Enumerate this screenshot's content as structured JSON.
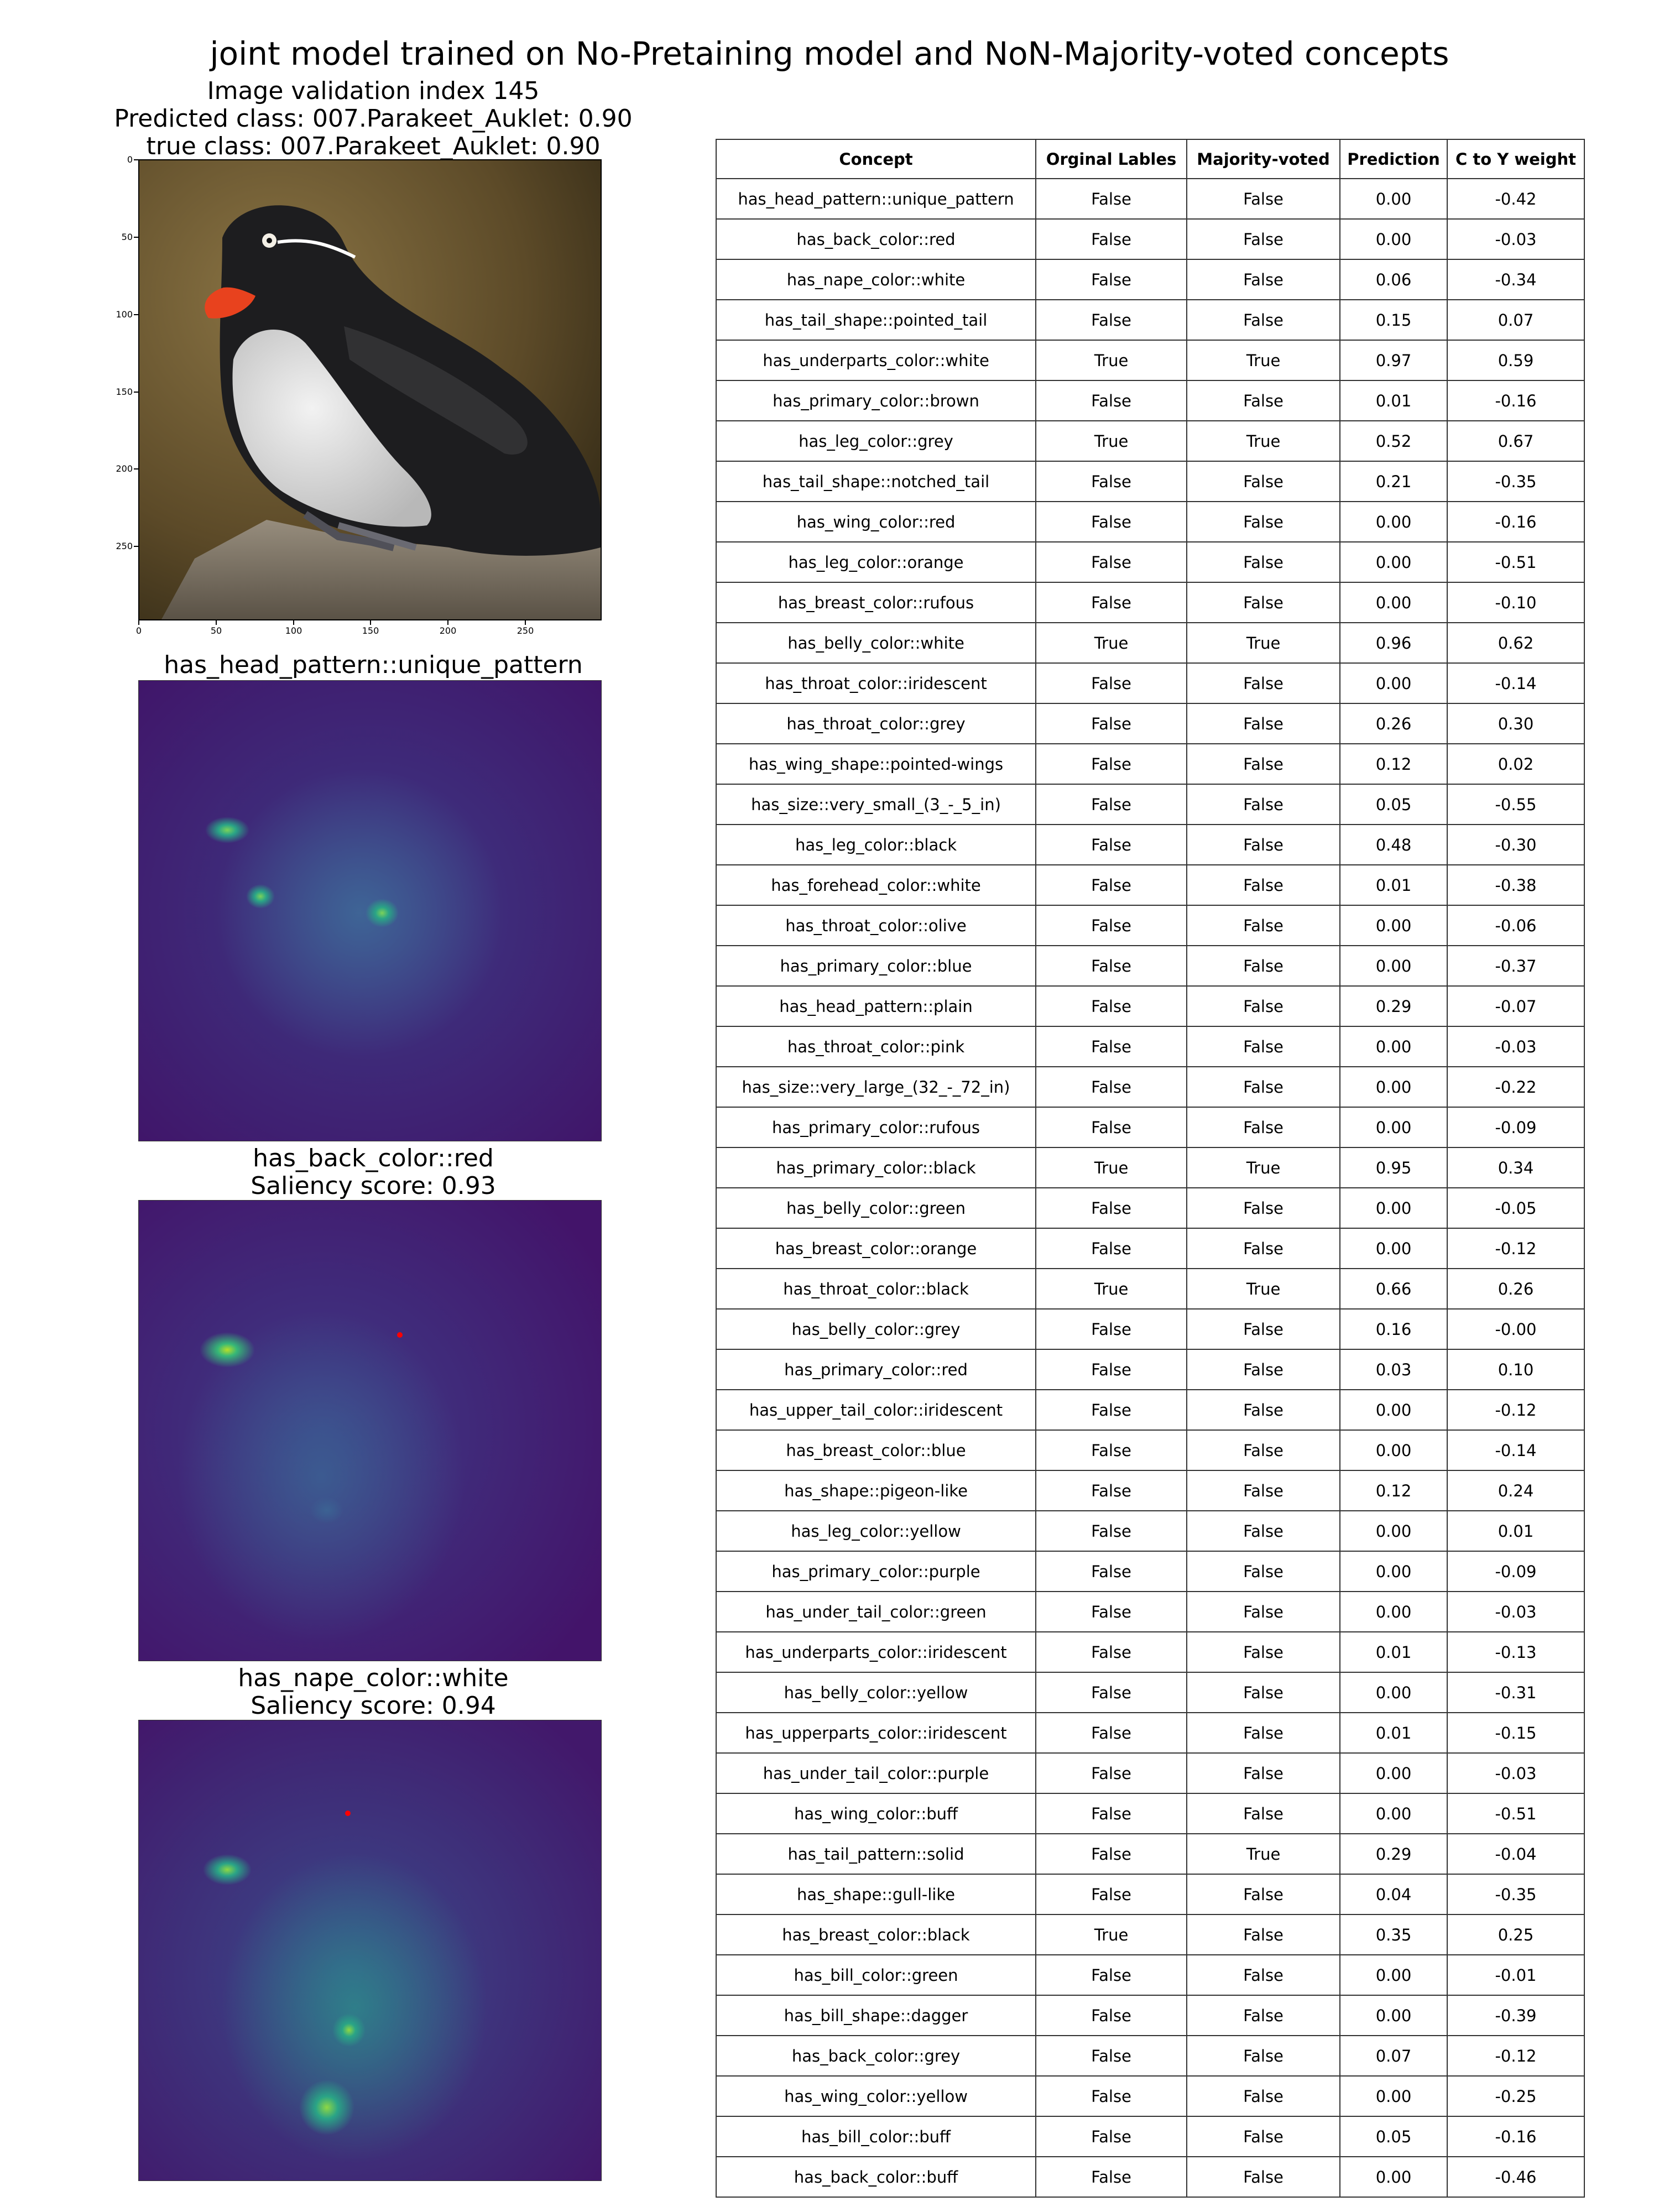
{
  "title": "joint model trained on No-Pretaining model and NoN-Majority-voted concepts",
  "image_panel": {
    "line1": "Image validation index 145",
    "line2": "Predicted class: 007.Parakeet_Auklet: 0.90",
    "line3": "true class: 007.Parakeet_Auklet: 0.90",
    "y_ticks": [
      "0",
      "50",
      "100",
      "150",
      "200",
      "250"
    ],
    "x_ticks": [
      "0",
      "50",
      "100",
      "150",
      "200",
      "250"
    ]
  },
  "saliency_panels": [
    {
      "title": "has_head_pattern::unique_pattern",
      "score_text": ""
    },
    {
      "title": "has_back_color::red",
      "score_text": "Saliency score: 0.93"
    },
    {
      "title": "has_nape_color::white",
      "score_text": "Saliency score: 0.94"
    }
  ],
  "colors": {
    "viridis_dark": "#3b1c63",
    "viridis_mid": "#3b5a8c",
    "viridis_green": "#5ec962",
    "marker_red": "#ff0000"
  },
  "chart_data": {
    "type": "table",
    "columns": [
      "Concept",
      "Orginal Lables",
      "Majority-voted",
      "Prediction",
      "C to Y weight"
    ],
    "rows": [
      [
        "has_head_pattern::unique_pattern",
        "False",
        "False",
        "0.00",
        "-0.42"
      ],
      [
        "has_back_color::red",
        "False",
        "False",
        "0.00",
        "-0.03"
      ],
      [
        "has_nape_color::white",
        "False",
        "False",
        "0.06",
        "-0.34"
      ],
      [
        "has_tail_shape::pointed_tail",
        "False",
        "False",
        "0.15",
        "0.07"
      ],
      [
        "has_underparts_color::white",
        "True",
        "True",
        "0.97",
        "0.59"
      ],
      [
        "has_primary_color::brown",
        "False",
        "False",
        "0.01",
        "-0.16"
      ],
      [
        "has_leg_color::grey",
        "True",
        "True",
        "0.52",
        "0.67"
      ],
      [
        "has_tail_shape::notched_tail",
        "False",
        "False",
        "0.21",
        "-0.35"
      ],
      [
        "has_wing_color::red",
        "False",
        "False",
        "0.00",
        "-0.16"
      ],
      [
        "has_leg_color::orange",
        "False",
        "False",
        "0.00",
        "-0.51"
      ],
      [
        "has_breast_color::rufous",
        "False",
        "False",
        "0.00",
        "-0.10"
      ],
      [
        "has_belly_color::white",
        "True",
        "True",
        "0.96",
        "0.62"
      ],
      [
        "has_throat_color::iridescent",
        "False",
        "False",
        "0.00",
        "-0.14"
      ],
      [
        "has_throat_color::grey",
        "False",
        "False",
        "0.26",
        "0.30"
      ],
      [
        "has_wing_shape::pointed-wings",
        "False",
        "False",
        "0.12",
        "0.02"
      ],
      [
        "has_size::very_small_(3_-_5_in)",
        "False",
        "False",
        "0.05",
        "-0.55"
      ],
      [
        "has_leg_color::black",
        "False",
        "False",
        "0.48",
        "-0.30"
      ],
      [
        "has_forehead_color::white",
        "False",
        "False",
        "0.01",
        "-0.38"
      ],
      [
        "has_throat_color::olive",
        "False",
        "False",
        "0.00",
        "-0.06"
      ],
      [
        "has_primary_color::blue",
        "False",
        "False",
        "0.00",
        "-0.37"
      ],
      [
        "has_head_pattern::plain",
        "False",
        "False",
        "0.29",
        "-0.07"
      ],
      [
        "has_throat_color::pink",
        "False",
        "False",
        "0.00",
        "-0.03"
      ],
      [
        "has_size::very_large_(32_-_72_in)",
        "False",
        "False",
        "0.00",
        "-0.22"
      ],
      [
        "has_primary_color::rufous",
        "False",
        "False",
        "0.00",
        "-0.09"
      ],
      [
        "has_primary_color::black",
        "True",
        "True",
        "0.95",
        "0.34"
      ],
      [
        "has_belly_color::green",
        "False",
        "False",
        "0.00",
        "-0.05"
      ],
      [
        "has_breast_color::orange",
        "False",
        "False",
        "0.00",
        "-0.12"
      ],
      [
        "has_throat_color::black",
        "True",
        "True",
        "0.66",
        "0.26"
      ],
      [
        "has_belly_color::grey",
        "False",
        "False",
        "0.16",
        "-0.00"
      ],
      [
        "has_primary_color::red",
        "False",
        "False",
        "0.03",
        "0.10"
      ],
      [
        "has_upper_tail_color::iridescent",
        "False",
        "False",
        "0.00",
        "-0.12"
      ],
      [
        "has_breast_color::blue",
        "False",
        "False",
        "0.00",
        "-0.14"
      ],
      [
        "has_shape::pigeon-like",
        "False",
        "False",
        "0.12",
        "0.24"
      ],
      [
        "has_leg_color::yellow",
        "False",
        "False",
        "0.00",
        "0.01"
      ],
      [
        "has_primary_color::purple",
        "False",
        "False",
        "0.00",
        "-0.09"
      ],
      [
        "has_under_tail_color::green",
        "False",
        "False",
        "0.00",
        "-0.03"
      ],
      [
        "has_underparts_color::iridescent",
        "False",
        "False",
        "0.01",
        "-0.13"
      ],
      [
        "has_belly_color::yellow",
        "False",
        "False",
        "0.00",
        "-0.31"
      ],
      [
        "has_upperparts_color::iridescent",
        "False",
        "False",
        "0.01",
        "-0.15"
      ],
      [
        "has_under_tail_color::purple",
        "False",
        "False",
        "0.00",
        "-0.03"
      ],
      [
        "has_wing_color::buff",
        "False",
        "False",
        "0.00",
        "-0.51"
      ],
      [
        "has_tail_pattern::solid",
        "False",
        "True",
        "0.29",
        "-0.04"
      ],
      [
        "has_shape::gull-like",
        "False",
        "False",
        "0.04",
        "-0.35"
      ],
      [
        "has_breast_color::black",
        "True",
        "False",
        "0.35",
        "0.25"
      ],
      [
        "has_bill_color::green",
        "False",
        "False",
        "0.00",
        "-0.01"
      ],
      [
        "has_bill_shape::dagger",
        "False",
        "False",
        "0.00",
        "-0.39"
      ],
      [
        "has_back_color::grey",
        "False",
        "False",
        "0.07",
        "-0.12"
      ],
      [
        "has_wing_color::yellow",
        "False",
        "False",
        "0.00",
        "-0.25"
      ],
      [
        "has_bill_color::buff",
        "False",
        "False",
        "0.05",
        "-0.16"
      ],
      [
        "has_back_color::buff",
        "False",
        "False",
        "0.00",
        "-0.46"
      ]
    ]
  }
}
